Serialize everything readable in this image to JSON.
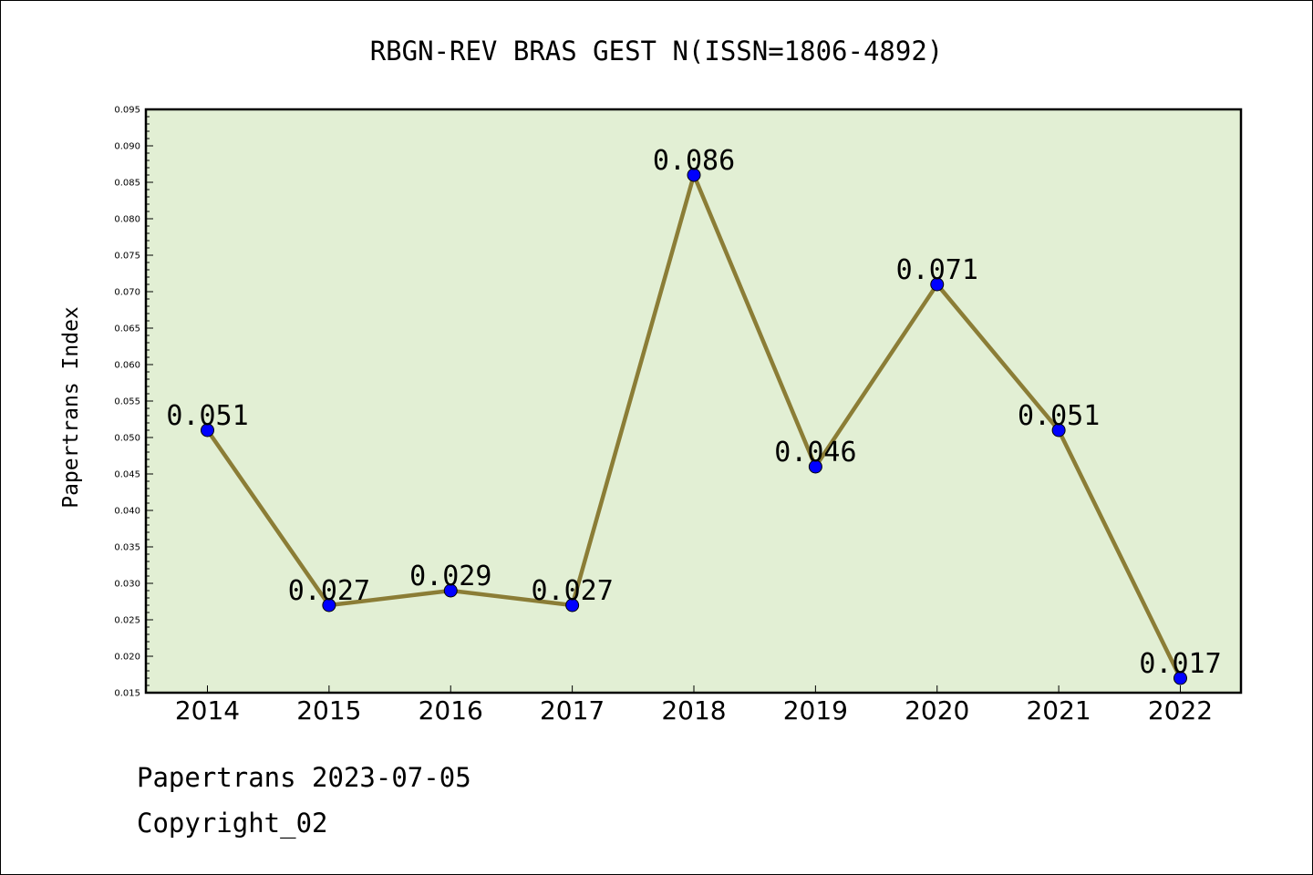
{
  "chart_data": {
    "type": "line",
    "title": "RBGN-REV BRAS GEST N(ISSN=1806-4892)",
    "xlabel": "",
    "ylabel": "Papertrans Index",
    "categories": [
      "2014",
      "2015",
      "2016",
      "2017",
      "2018",
      "2019",
      "2020",
      "2021",
      "2022"
    ],
    "series": [
      {
        "values": [
          0.051,
          0.027,
          0.029,
          0.027,
          0.086,
          0.046,
          0.071,
          0.051,
          0.017
        ],
        "labels": [
          "0.051",
          "0.027",
          "0.029",
          "0.027",
          "0.086",
          "0.046",
          "0.071",
          "0.051",
          "0.017"
        ],
        "line_color": "#8b7d36",
        "marker_color": "#0000ff"
      }
    ],
    "ylim": [
      0.015,
      0.095
    ],
    "yticks": [
      "0.015",
      "0.020",
      "0.025",
      "0.030",
      "0.035",
      "0.040",
      "0.045",
      "0.050",
      "0.055",
      "0.060",
      "0.065",
      "0.070",
      "0.075",
      "0.080",
      "0.085",
      "0.090",
      "0.095"
    ],
    "plot_background": "#e2efd4",
    "grid": false,
    "legend": "none"
  },
  "footer": {
    "line1": "Papertrans 2023-07-05",
    "line2": "Copyright_02"
  }
}
